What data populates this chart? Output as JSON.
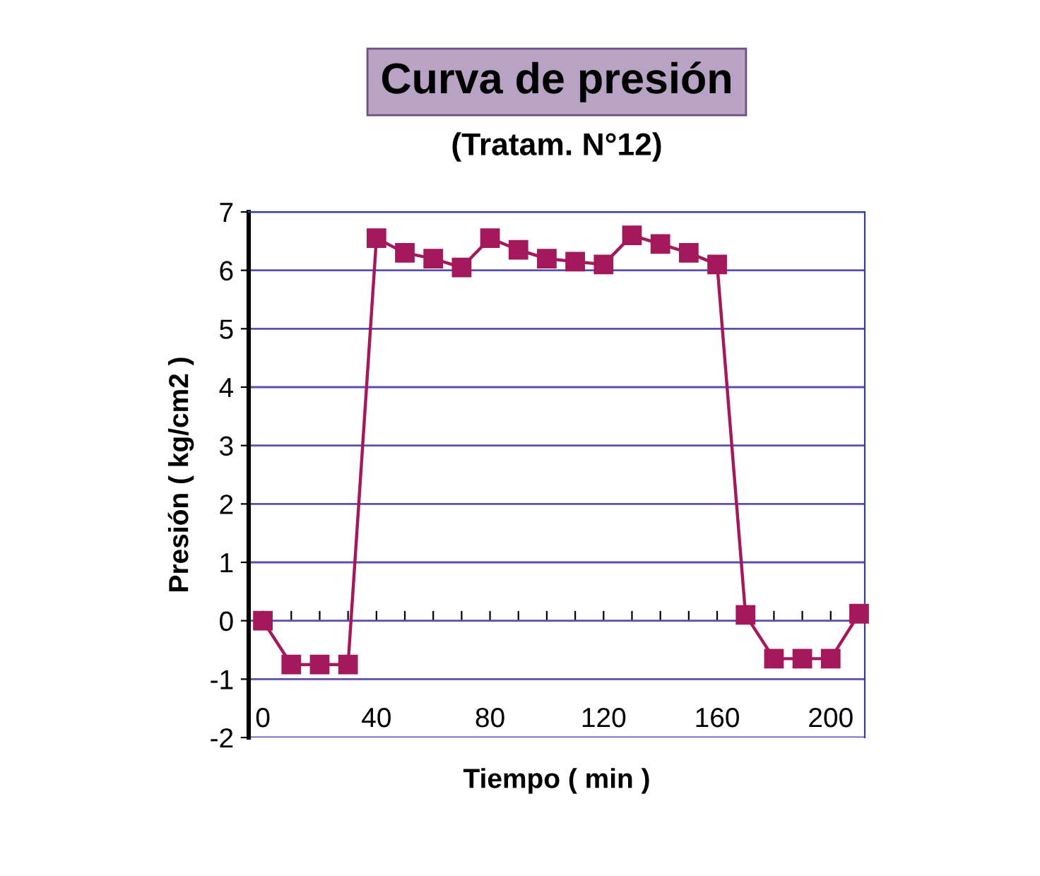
{
  "chart_data": {
    "type": "line",
    "title": "Curva de presión",
    "subtitle": "(Tratam. N°12)",
    "xlabel": "Tiempo ( min )",
    "ylabel": "Presión ( kg/cm2 )",
    "x": [
      0,
      10,
      20,
      30,
      40,
      50,
      60,
      70,
      80,
      90,
      100,
      110,
      120,
      130,
      140,
      150,
      160,
      170,
      180,
      190,
      200,
      210
    ],
    "series": [
      {
        "color": "#a3195b",
        "values": [
          0,
          -0.75,
          -0.75,
          -0.75,
          6.55,
          6.3,
          6.2,
          6.05,
          6.55,
          6.35,
          6.2,
          6.15,
          6.1,
          6.6,
          6.45,
          6.3,
          6.1,
          0.1,
          -0.65,
          -0.65,
          -0.65,
          0.12
        ]
      }
    ],
    "xlim": [
      -5,
      212
    ],
    "xticks": [
      0,
      {
        "value": 10,
        "label": null
      },
      {
        "value": 20,
        "label": null
      },
      {
        "value": 30,
        "label": null
      },
      40,
      {
        "value": 50,
        "label": null
      },
      {
        "value": 60,
        "label": null
      },
      {
        "value": 70,
        "label": null
      },
      80,
      {
        "value": 90,
        "label": null
      },
      {
        "value": 100,
        "label": null
      },
      {
        "value": 110,
        "label": null
      },
      120,
      {
        "value": 130,
        "label": null
      },
      {
        "value": 140,
        "label": null
      },
      {
        "value": 150,
        "label": null
      },
      160,
      {
        "value": 170,
        "label": null
      },
      {
        "value": 180,
        "label": null
      },
      {
        "value": 190,
        "label": null
      },
      200
    ],
    "ylim": [
      -2,
      7
    ],
    "yticks": [
      -2,
      -1,
      0,
      1,
      2,
      3,
      4,
      5,
      6,
      7
    ],
    "grid": "y",
    "marker": "square",
    "line_style": "solid",
    "legend": false
  }
}
